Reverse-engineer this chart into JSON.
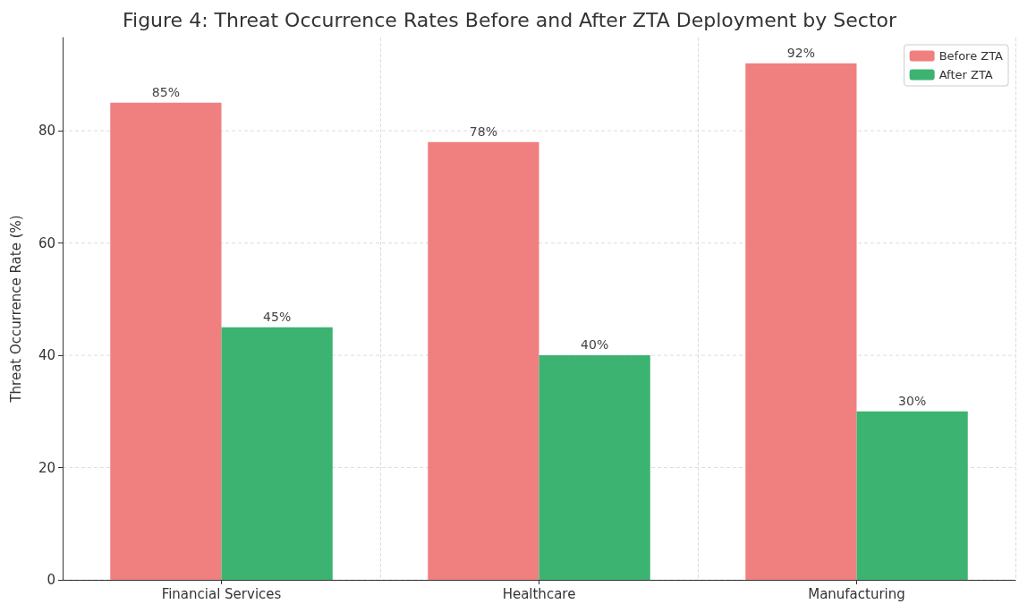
{
  "chart_data": {
    "type": "bar",
    "title": "Figure 4: Threat Occurrence Rates Before and After ZTA Deployment by Sector",
    "ylabel": "Threat Occurrence Rate (%)",
    "categories": [
      "Financial Services",
      "Healthcare",
      "Manufacturing"
    ],
    "series": [
      {
        "name": "Before ZTA",
        "color": "#f08080",
        "values": [
          85,
          78,
          92
        ],
        "value_labels": [
          "85%",
          "78%",
          "92%"
        ]
      },
      {
        "name": "After ZTA",
        "color": "#3cb371",
        "values": [
          45,
          40,
          30
        ],
        "value_labels": [
          "45%",
          "40%",
          "30%"
        ]
      }
    ],
    "ylim": [
      0,
      96.6
    ],
    "yticks": [
      0,
      20,
      40,
      60,
      80
    ],
    "grid": true,
    "legend": "top right"
  }
}
